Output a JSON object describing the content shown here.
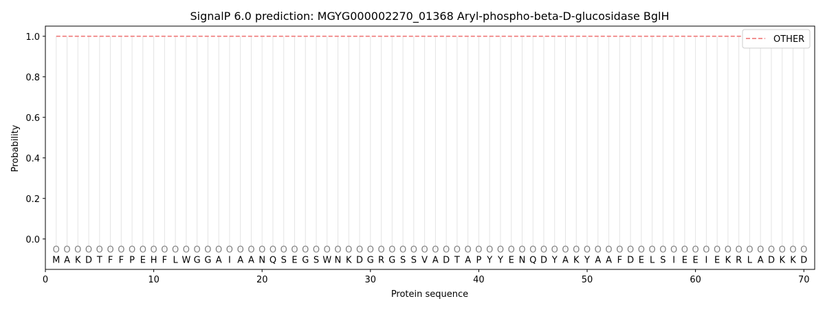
{
  "chart_data": {
    "type": "line",
    "title": "SignalP 6.0 prediction: MGYG000002270_01368 Aryl-phospho-beta-D-glucosidase BglH",
    "xlabel": "Protein sequence",
    "ylabel": "Probability",
    "xlim": [
      0,
      71
    ],
    "ylim": [
      -0.15,
      1.05
    ],
    "xticks": [
      0,
      10,
      20,
      30,
      40,
      50,
      60,
      70
    ],
    "yticks": [
      0.0,
      0.2,
      0.4,
      0.6,
      0.8,
      1.0
    ],
    "ytick_labels": [
      "0.0",
      "0.2",
      "0.4",
      "0.6",
      "0.8",
      "1.0"
    ],
    "legend_position": "top-right",
    "series": [
      {
        "name": "OTHER",
        "style": "dashed",
        "color": "#f08080",
        "x": [
          1,
          70
        ],
        "y": [
          1.0,
          1.0
        ]
      }
    ],
    "sequence": [
      "M",
      "A",
      "K",
      "D",
      "T",
      "F",
      "F",
      "P",
      "E",
      "H",
      "F",
      "L",
      "W",
      "G",
      "G",
      "A",
      "I",
      "A",
      "A",
      "N",
      "Q",
      "S",
      "E",
      "G",
      "S",
      "W",
      "N",
      "K",
      "D",
      "G",
      "R",
      "G",
      "S",
      "S",
      "V",
      "A",
      "D",
      "T",
      "A",
      "P",
      "Y",
      "Y",
      "E",
      "N",
      "Q",
      "D",
      "Y",
      "A",
      "K",
      "Y",
      "A",
      "A",
      "F",
      "D",
      "E",
      "L",
      "S",
      "I",
      "E",
      "E",
      "I",
      "E",
      "K",
      "R",
      "L",
      "A",
      "D",
      "K",
      "K",
      "D"
    ],
    "predicted_labels": [
      "O",
      "O",
      "O",
      "O",
      "O",
      "O",
      "O",
      "O",
      "O",
      "O",
      "O",
      "O",
      "O",
      "O",
      "O",
      "O",
      "O",
      "O",
      "O",
      "O",
      "O",
      "O",
      "O",
      "O",
      "O",
      "O",
      "O",
      "O",
      "O",
      "O",
      "O",
      "O",
      "O",
      "O",
      "O",
      "O",
      "O",
      "O",
      "O",
      "O",
      "O",
      "O",
      "O",
      "O",
      "O",
      "O",
      "O",
      "O",
      "O",
      "O",
      "O",
      "O",
      "O",
      "O",
      "O",
      "O",
      "O",
      "O",
      "O",
      "O",
      "O",
      "O",
      "O",
      "O",
      "O",
      "O",
      "O",
      "O",
      "O",
      "O"
    ]
  }
}
